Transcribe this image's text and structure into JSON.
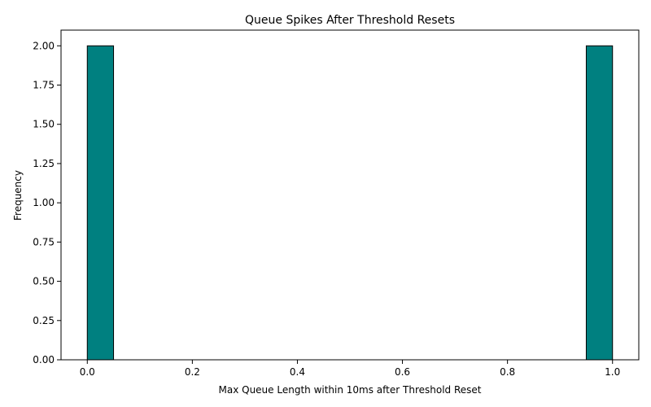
{
  "chart_data": {
    "type": "bar",
    "subtype": "histogram",
    "title": "Queue Spikes After Threshold Resets",
    "xlabel": "Max Queue Length within 10ms after Threshold Reset",
    "ylabel": "Frequency",
    "xlim": [
      -0.05,
      1.05
    ],
    "ylim": [
      0,
      2.1
    ],
    "x_ticks": [
      "0.0",
      "0.2",
      "0.4",
      "0.6",
      "0.8",
      "1.0"
    ],
    "y_ticks": [
      "0.00",
      "0.25",
      "0.50",
      "0.75",
      "1.00",
      "1.25",
      "1.50",
      "1.75",
      "2.00"
    ],
    "bins": [
      {
        "start": 0.0,
        "end": 0.05,
        "count": 2
      },
      {
        "start": 0.05,
        "end": 0.1,
        "count": 0
      },
      {
        "start": 0.1,
        "end": 0.15,
        "count": 0
      },
      {
        "start": 0.15,
        "end": 0.2,
        "count": 0
      },
      {
        "start": 0.2,
        "end": 0.25,
        "count": 0
      },
      {
        "start": 0.25,
        "end": 0.3,
        "count": 0
      },
      {
        "start": 0.3,
        "end": 0.35,
        "count": 0
      },
      {
        "start": 0.35,
        "end": 0.4,
        "count": 0
      },
      {
        "start": 0.4,
        "end": 0.45,
        "count": 0
      },
      {
        "start": 0.45,
        "end": 0.5,
        "count": 0
      },
      {
        "start": 0.5,
        "end": 0.55,
        "count": 0
      },
      {
        "start": 0.55,
        "end": 0.6,
        "count": 0
      },
      {
        "start": 0.6,
        "end": 0.65,
        "count": 0
      },
      {
        "start": 0.65,
        "end": 0.7,
        "count": 0
      },
      {
        "start": 0.7,
        "end": 0.75,
        "count": 0
      },
      {
        "start": 0.75,
        "end": 0.8,
        "count": 0
      },
      {
        "start": 0.8,
        "end": 0.85,
        "count": 0
      },
      {
        "start": 0.85,
        "end": 0.9,
        "count": 0
      },
      {
        "start": 0.9,
        "end": 0.95,
        "count": 0
      },
      {
        "start": 0.95,
        "end": 1.0,
        "count": 2
      }
    ],
    "bar_color": "#008080",
    "edge_color": "#000000",
    "grid": false,
    "legend": "none"
  }
}
